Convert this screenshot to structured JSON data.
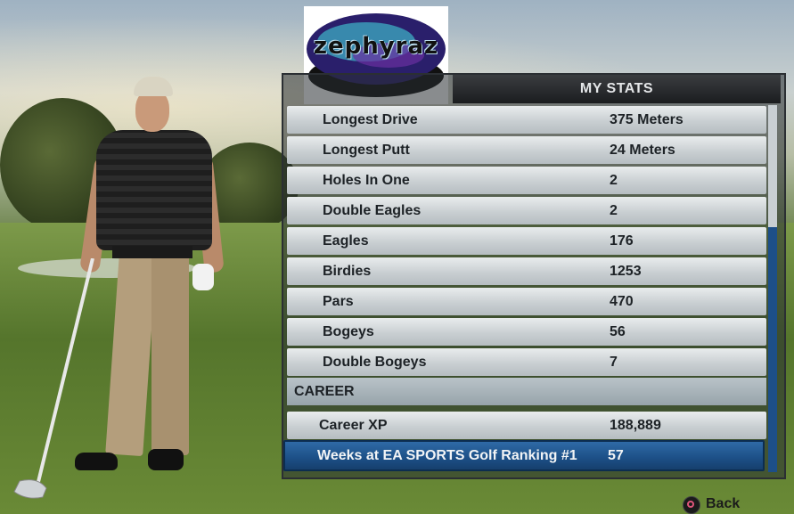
{
  "logo": {
    "text": "zephyraz"
  },
  "panel": {
    "title": "MY STATS"
  },
  "stats": [
    {
      "label": "Longest Drive",
      "value": "375 Meters"
    },
    {
      "label": "Longest Putt",
      "value": "24 Meters"
    },
    {
      "label": "Holes In One",
      "value": "2"
    },
    {
      "label": "Double Eagles",
      "value": "2"
    },
    {
      "label": "Eagles",
      "value": "176"
    },
    {
      "label": "Birdies",
      "value": "1253"
    },
    {
      "label": "Pars",
      "value": "470"
    },
    {
      "label": "Bogeys",
      "value": "56"
    },
    {
      "label": "Double Bogeys",
      "value": "7"
    }
  ],
  "career": {
    "section_label": "CAREER",
    "rows": [
      {
        "label": "Career XP",
        "value": "188,889"
      },
      {
        "label": "Weeks at EA SPORTS Golf Ranking #1",
        "value": "57"
      }
    ]
  },
  "footer": {
    "back_label": "Back",
    "back_icon": "circle-button-icon"
  },
  "colors": {
    "selected_row": "#1c4f86",
    "row": "#d3d8db",
    "header": "#1b1d1f"
  }
}
